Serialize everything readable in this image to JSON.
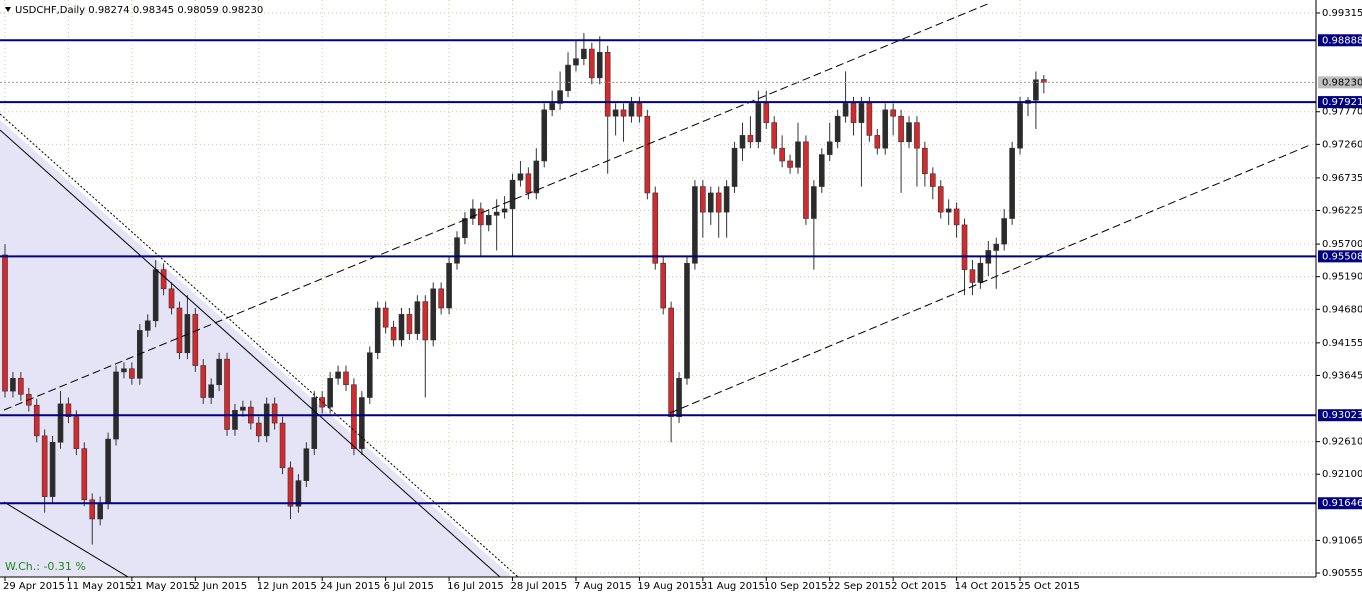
{
  "chart_data": {
    "type": "candlestick",
    "title": "USDCHF,Daily  0.98274 0.98345 0.98059 0.98230",
    "footer": "W.Ch.: -0.31 %",
    "up_color": "#2b2b2b",
    "down_color": "#d42a2e",
    "level_color": "#000080",
    "grid": true,
    "ylim": [
      0.90508,
      0.99471
    ],
    "yticks": [
      0.99315,
      {
        "value": 0.9777,
        "label": "0.97770"
      },
      {
        "value": 0.9726,
        "label": "0.97260"
      },
      0.96735,
      0.96225,
      {
        "value": 0.957,
        "label": "0.95700"
      },
      {
        "value": 0.9519,
        "label": "0.95190"
      },
      {
        "value": 0.9468,
        "label": "0.94680"
      },
      0.94155,
      0.93645,
      {
        "value": 0.9261,
        "label": "0.92610"
      },
      {
        "value": 0.921,
        "label": "0.92100"
      },
      0.91065,
      0.90555
    ],
    "levels": [
      0.98888,
      0.97921,
      0.95508,
      0.93023,
      0.91646
    ],
    "current": {
      "value": 0.9823,
      "label": "0.98230"
    },
    "categories": [
      "29 Apr 2015",
      null,
      null,
      null,
      null,
      null,
      null,
      null,
      "11 May 2015",
      null,
      null,
      null,
      null,
      null,
      null,
      null,
      "21 May 2015",
      null,
      null,
      null,
      null,
      null,
      null,
      null,
      "2 Jun 2015",
      null,
      null,
      null,
      null,
      null,
      null,
      null,
      "12 Jun 2015",
      null,
      null,
      null,
      null,
      null,
      null,
      null,
      "24 Jun 2015",
      null,
      null,
      null,
      null,
      null,
      null,
      null,
      "6 Jul 2015",
      null,
      null,
      null,
      null,
      null,
      null,
      null,
      "16 Jul 2015",
      null,
      null,
      null,
      null,
      null,
      null,
      null,
      "28 Jul 2015",
      null,
      null,
      null,
      null,
      null,
      null,
      null,
      "7 Aug 2015",
      null,
      null,
      null,
      null,
      null,
      null,
      null,
      "19 Aug 2015",
      null,
      null,
      null,
      null,
      null,
      null,
      null,
      "31 Aug 2015",
      null,
      null,
      null,
      null,
      null,
      null,
      null,
      "10 Sep 2015",
      null,
      null,
      null,
      null,
      null,
      null,
      null,
      "22 Sep 2015",
      null,
      null,
      null,
      null,
      null,
      null,
      null,
      "2 Oct 2015",
      null,
      null,
      null,
      null,
      null,
      null,
      null,
      "14 Oct 2015",
      null,
      null,
      null,
      null,
      null,
      null,
      null,
      "25 Oct 2015",
      null,
      null,
      null
    ],
    "candles": [
      [
        0.9553,
        0.957,
        0.933,
        0.934
      ],
      [
        0.934,
        0.937,
        0.933,
        0.936
      ],
      [
        0.936,
        0.937,
        0.9325,
        0.9335
      ],
      [
        0.9335,
        0.9345,
        0.9308,
        0.9318
      ],
      [
        0.9318,
        0.9328,
        0.926,
        0.927
      ],
      [
        0.927,
        0.928,
        0.915,
        0.9175
      ],
      [
        0.9175,
        0.927,
        0.9165,
        0.926
      ],
      [
        0.926,
        0.934,
        0.925,
        0.932
      ],
      [
        0.932,
        0.933,
        0.929,
        0.93
      ],
      [
        0.93,
        0.931,
        0.924,
        0.925
      ],
      [
        0.925,
        0.926,
        0.916,
        0.917
      ],
      [
        0.917,
        0.918,
        0.91,
        0.914
      ],
      [
        0.914,
        0.9175,
        0.913,
        0.9165
      ],
      [
        0.9165,
        0.9275,
        0.9155,
        0.9265
      ],
      [
        0.9265,
        0.938,
        0.9255,
        0.937
      ],
      [
        0.937,
        0.9385,
        0.936,
        0.9375
      ],
      [
        0.9375,
        0.9385,
        0.935,
        0.936
      ],
      [
        0.936,
        0.9445,
        0.935,
        0.9435
      ],
      [
        0.9435,
        0.946,
        0.9425,
        0.945
      ],
      [
        0.945,
        0.9545,
        0.944,
        0.953
      ],
      [
        0.953,
        0.954,
        0.949,
        0.95
      ],
      [
        0.95,
        0.951,
        0.946,
        0.947
      ],
      [
        0.947,
        0.948,
        0.939,
        0.94
      ],
      [
        0.94,
        0.949,
        0.939,
        0.946
      ],
      [
        0.946,
        0.947,
        0.937,
        0.938
      ],
      [
        0.938,
        0.939,
        0.932,
        0.933
      ],
      [
        0.933,
        0.936,
        0.932,
        0.935
      ],
      [
        0.935,
        0.94,
        0.934,
        0.939
      ],
      [
        0.939,
        0.94,
        0.927,
        0.928
      ],
      [
        0.928,
        0.932,
        0.927,
        0.931
      ],
      [
        0.931,
        0.9325,
        0.93,
        0.9315
      ],
      [
        0.9315,
        0.9325,
        0.928,
        0.929
      ],
      [
        0.929,
        0.93,
        0.926,
        0.927
      ],
      [
        0.927,
        0.933,
        0.926,
        0.932
      ],
      [
        0.932,
        0.933,
        0.928,
        0.929
      ],
      [
        0.929,
        0.93,
        0.921,
        0.922
      ],
      [
        0.922,
        0.923,
        0.914,
        0.916
      ],
      [
        0.916,
        0.921,
        0.915,
        0.92
      ],
      [
        0.92,
        0.926,
        0.919,
        0.925
      ],
      [
        0.925,
        0.934,
        0.924,
        0.933
      ],
      [
        0.933,
        0.934,
        0.9305,
        0.9315
      ],
      [
        0.9315,
        0.937,
        0.9305,
        0.936
      ],
      [
        0.936,
        0.938,
        0.935,
        0.937
      ],
      [
        0.937,
        0.938,
        0.934,
        0.935
      ],
      [
        0.935,
        0.936,
        0.924,
        0.925
      ],
      [
        0.925,
        0.934,
        0.924,
        0.933
      ],
      [
        0.933,
        0.941,
        0.932,
        0.94
      ],
      [
        0.94,
        0.948,
        0.939,
        0.947
      ],
      [
        0.947,
        0.948,
        0.943,
        0.944
      ],
      [
        0.944,
        0.945,
        0.941,
        0.942
      ],
      [
        0.942,
        0.947,
        0.941,
        0.946
      ],
      [
        0.946,
        0.947,
        0.942,
        0.943
      ],
      [
        0.943,
        0.949,
        0.942,
        0.948
      ],
      [
        0.948,
        0.949,
        0.933,
        0.942
      ],
      [
        0.942,
        0.951,
        0.941,
        0.95
      ],
      [
        0.95,
        0.951,
        0.946,
        0.947
      ],
      [
        0.947,
        0.955,
        0.946,
        0.954
      ],
      [
        0.954,
        0.959,
        0.953,
        0.958
      ],
      [
        0.958,
        0.962,
        0.957,
        0.961
      ],
      [
        0.961,
        0.964,
        0.96,
        0.9625
      ],
      [
        0.9625,
        0.9635,
        0.955,
        0.96
      ],
      [
        0.96,
        0.9625,
        0.959,
        0.9615
      ],
      [
        0.9615,
        0.964,
        0.956,
        0.962
      ],
      [
        0.962,
        0.9645,
        0.961,
        0.9625
      ],
      [
        0.9625,
        0.968,
        0.955,
        0.967
      ],
      [
        0.967,
        0.97,
        0.966,
        0.968
      ],
      [
        0.968,
        0.969,
        0.964,
        0.965
      ],
      [
        0.965,
        0.972,
        0.964,
        0.97
      ],
      [
        0.97,
        0.979,
        0.969,
        0.978
      ],
      [
        0.978,
        0.981,
        0.977,
        0.979
      ],
      [
        0.979,
        0.984,
        0.978,
        0.981
      ],
      [
        0.981,
        0.987,
        0.98,
        0.985
      ],
      [
        0.985,
        0.989,
        0.984,
        0.986
      ],
      [
        0.986,
        0.99,
        0.985,
        0.9875
      ],
      [
        0.9875,
        0.9885,
        0.982,
        0.983
      ],
      [
        0.983,
        0.9895,
        0.982,
        0.987
      ],
      [
        0.987,
        0.988,
        0.968,
        0.977
      ],
      [
        0.977,
        0.979,
        0.974,
        0.978
      ],
      [
        0.978,
        0.979,
        0.973,
        0.977
      ],
      [
        0.977,
        0.98,
        0.976,
        0.979
      ],
      [
        0.979,
        0.98,
        0.976,
        0.977
      ],
      [
        0.977,
        0.978,
        0.964,
        0.965
      ],
      [
        0.965,
        0.966,
        0.953,
        0.954
      ],
      [
        0.954,
        0.955,
        0.946,
        0.947
      ],
      [
        0.947,
        0.948,
        0.926,
        0.93
      ],
      [
        0.93,
        0.937,
        0.929,
        0.936
      ],
      [
        0.936,
        0.955,
        0.935,
        0.954
      ],
      [
        0.954,
        0.967,
        0.953,
        0.966
      ],
      [
        0.966,
        0.967,
        0.958,
        0.962
      ],
      [
        0.962,
        0.966,
        0.96,
        0.965
      ],
      [
        0.965,
        0.966,
        0.958,
        0.962
      ],
      [
        0.962,
        0.967,
        0.958,
        0.966
      ],
      [
        0.966,
        0.973,
        0.965,
        0.972
      ],
      [
        0.972,
        0.976,
        0.97,
        0.974
      ],
      [
        0.974,
        0.977,
        0.972,
        0.973
      ],
      [
        0.973,
        0.981,
        0.972,
        0.979
      ],
      [
        0.979,
        0.981,
        0.975,
        0.976
      ],
      [
        0.976,
        0.977,
        0.971,
        0.972
      ],
      [
        0.972,
        0.974,
        0.969,
        0.97
      ],
      [
        0.97,
        0.971,
        0.968,
        0.969
      ],
      [
        0.969,
        0.976,
        0.968,
        0.973
      ],
      [
        0.973,
        0.974,
        0.96,
        0.961
      ],
      [
        0.961,
        0.967,
        0.953,
        0.966
      ],
      [
        0.966,
        0.972,
        0.965,
        0.971
      ],
      [
        0.971,
        0.976,
        0.97,
        0.973
      ],
      [
        0.973,
        0.978,
        0.972,
        0.977
      ],
      [
        0.977,
        0.984,
        0.976,
        0.979
      ],
      [
        0.979,
        0.98,
        0.974,
        0.976
      ],
      [
        0.976,
        0.98,
        0.966,
        0.979
      ],
      [
        0.979,
        0.98,
        0.973,
        0.974
      ],
      [
        0.974,
        0.975,
        0.971,
        0.972
      ],
      [
        0.972,
        0.979,
        0.971,
        0.978
      ],
      [
        0.978,
        0.979,
        0.974,
        0.977
      ],
      [
        0.977,
        0.978,
        0.965,
        0.973
      ],
      [
        0.973,
        0.977,
        0.972,
        0.976
      ],
      [
        0.976,
        0.977,
        0.966,
        0.972
      ],
      [
        0.972,
        0.973,
        0.966,
        0.968
      ],
      [
        0.968,
        0.969,
        0.964,
        0.966
      ],
      [
        0.966,
        0.967,
        0.961,
        0.962
      ],
      [
        0.962,
        0.964,
        0.96,
        0.9625
      ],
      [
        0.9625,
        0.9635,
        0.958,
        0.96
      ],
      [
        0.96,
        0.961,
        0.949,
        0.953
      ],
      [
        0.953,
        0.9545,
        0.949,
        0.951
      ],
      [
        0.951,
        0.955,
        0.95,
        0.954
      ],
      [
        0.954,
        0.9575,
        0.952,
        0.956
      ],
      [
        0.956,
        0.958,
        0.95,
        0.957
      ],
      [
        0.957,
        0.9625,
        0.956,
        0.961
      ],
      [
        0.961,
        0.973,
        0.96,
        0.972
      ],
      [
        0.972,
        0.98,
        0.971,
        0.979
      ],
      [
        0.979,
        0.98,
        0.977,
        0.9795
      ],
      [
        0.9795,
        0.984,
        0.975,
        0.9827
      ],
      [
        0.98274,
        0.98345,
        0.98059,
        0.9823
      ]
    ]
  }
}
